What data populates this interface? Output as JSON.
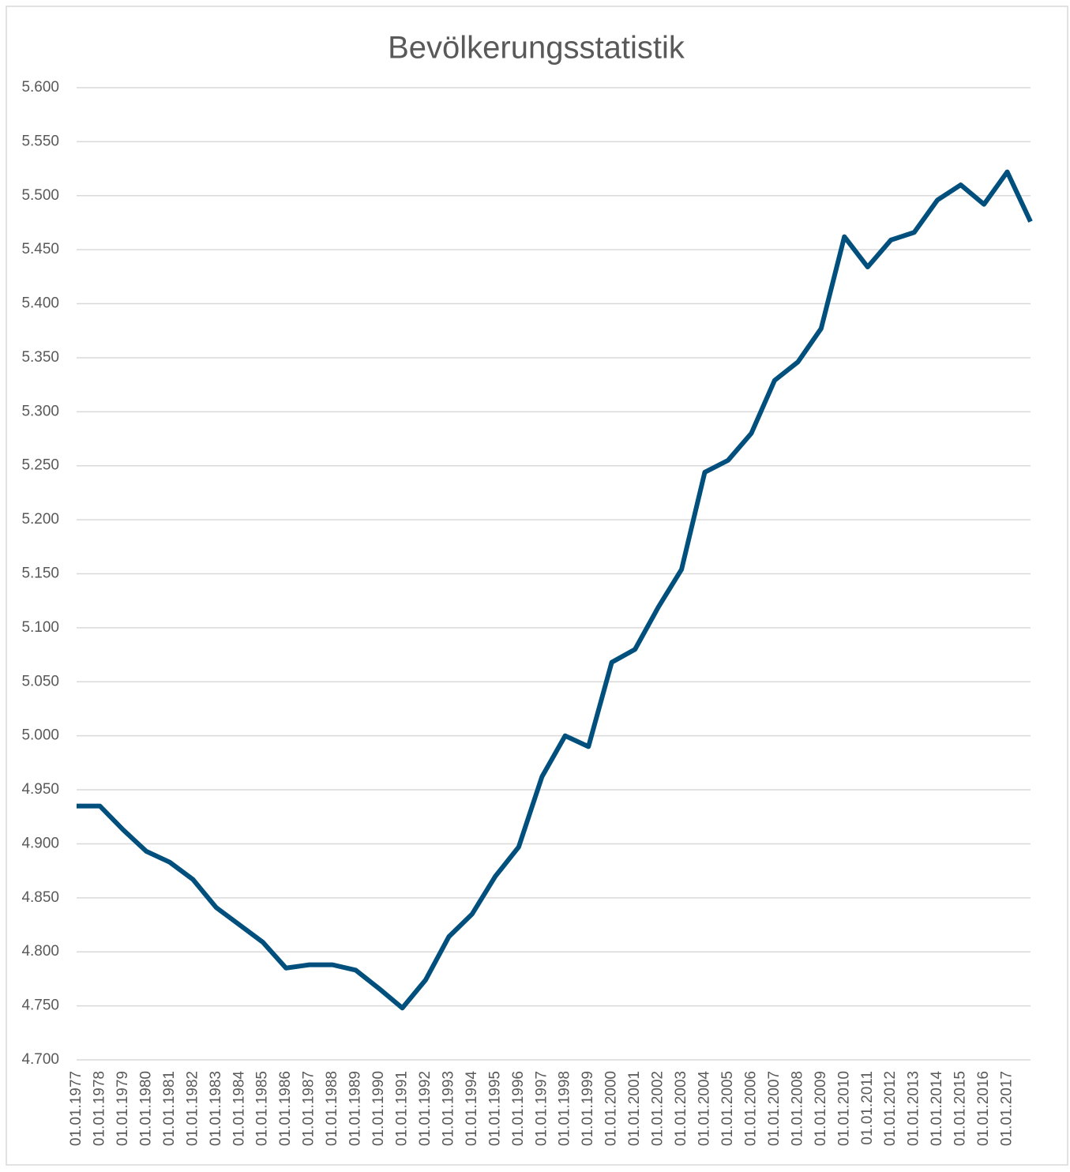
{
  "chart_data": {
    "type": "line",
    "title": "Bevölkerungsstatistik",
    "categories": [
      "01.01.1977",
      "01.01.1978",
      "01.01.1979",
      "01.01.1980",
      "01.01.1981",
      "01.01.1982",
      "01.01.1983",
      "01.01.1984",
      "01.01.1985",
      "01.01.1986",
      "01.01.1987",
      "01.01.1988",
      "01.01.1989",
      "01.01.1990",
      "01.01.1991",
      "01.01.1992",
      "01.01.1993",
      "01.01.1994",
      "01.01.1995",
      "01.01.1996",
      "01.01.1997",
      "01.01.1998",
      "01.01.1999",
      "01.01.2000",
      "01.01.2001",
      "01.01.2002",
      "01.01.2003",
      "01.01.2004",
      "01.01.2005",
      "01.01.2006",
      "01.01.2007",
      "01.01.2008",
      "01.01.2009",
      "01.01.2010",
      "01.01.2011",
      "01.01.2012",
      "01.01.2013",
      "01.01.2014",
      "01.01.2015",
      "01.01.2016",
      "01.01.2017",
      null
    ],
    "series": [
      {
        "color": "#004f7c",
        "values": [
          4935,
          4935,
          4913,
          4893,
          4883,
          4867,
          4841,
          4825,
          4809,
          4785,
          4788,
          4788,
          4783,
          4766,
          4748,
          4774,
          4814,
          4835,
          4870,
          4897,
          4962,
          5000,
          4990,
          5068,
          5080,
          5119,
          5154,
          5244,
          5255,
          5280,
          5329,
          5346,
          5377,
          5462,
          5434,
          5459,
          5466,
          5496,
          5510,
          5492,
          5522,
          5476
        ]
      }
    ],
    "ylim": [
      4700,
      5600
    ],
    "yticks": [
      {
        "value": 4700,
        "label": "4.700"
      },
      {
        "value": 4750,
        "label": "4.750"
      },
      {
        "value": 4800,
        "label": "4.800"
      },
      {
        "value": 4850,
        "label": "4.850"
      },
      {
        "value": 4900,
        "label": "4.900"
      },
      {
        "value": 4950,
        "label": "4.950"
      },
      {
        "value": 5000,
        "label": "5.000"
      },
      {
        "value": 5050,
        "label": "5.050"
      },
      {
        "value": 5100,
        "label": "5.100"
      },
      {
        "value": 5150,
        "label": "5.150"
      },
      {
        "value": 5200,
        "label": "5.200"
      },
      {
        "value": 5250,
        "label": "5.250"
      },
      {
        "value": 5300,
        "label": "5.300"
      },
      {
        "value": 5350,
        "label": "5.350"
      },
      {
        "value": 5400,
        "label": "5.400"
      },
      {
        "value": 5450,
        "label": "5.450"
      },
      {
        "value": 5500,
        "label": "5.500"
      },
      {
        "value": 5550,
        "label": "5.550"
      },
      {
        "value": 5600,
        "label": "5.600"
      }
    ],
    "grid": true
  }
}
